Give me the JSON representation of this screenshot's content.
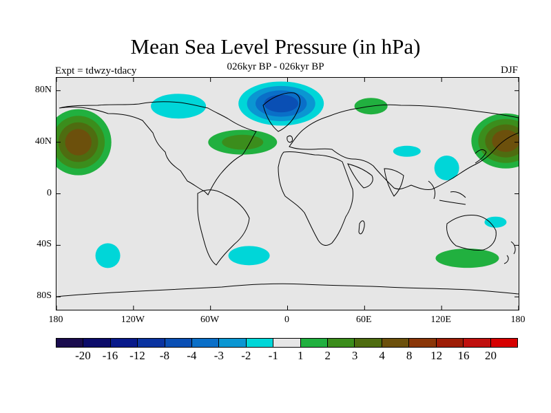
{
  "title": "Mean Sea Level Pressure (in hPa)",
  "subtitle": "026kyr BP - 026kyr BP",
  "experiment": "Expt = tdwzy-tdacy",
  "season": "DJF",
  "map": {
    "projection": "equirectangular",
    "background_color": "#e6e6e6",
    "lon_range": [
      -180,
      180
    ],
    "lat_range": [
      -90,
      90
    ],
    "lat_ticks": [
      "80N",
      "40N",
      "0",
      "40S",
      "80S"
    ],
    "lon_ticks": [
      "180",
      "120W",
      "60W",
      "0",
      "60E",
      "120E",
      "180"
    ]
  },
  "colorbar": {
    "colors": [
      "#1a0c4e",
      "#0c0c6a",
      "#08198a",
      "#0a33a0",
      "#0a4fb4",
      "#0a6fc8",
      "#0a96d2",
      "#00d6d8",
      "#e6e6e6",
      "#21b03f",
      "#3b8d1c",
      "#4e6c10",
      "#6c500c",
      "#8a3608",
      "#9e1d06",
      "#c0100e",
      "#d60000"
    ],
    "labels": [
      "-20",
      "-16",
      "-12",
      "-8",
      "-4",
      "-3",
      "-2",
      "-1",
      "1",
      "2",
      "3",
      "4",
      "8",
      "12",
      "16",
      "20"
    ]
  },
  "anomalies": [
    {
      "name": "north-pacific-positive-west",
      "sign": "positive",
      "lon": -163,
      "lat": 40,
      "levels": [
        "#21b03f",
        "#3b8d1c",
        "#4e6c10",
        "#6c500c"
      ]
    },
    {
      "name": "north-pacific-positive-east",
      "sign": "positive",
      "lon": 170,
      "lat": 41,
      "levels": [
        "#21b03f",
        "#3b8d1c",
        "#4e6c10",
        "#6c500c"
      ]
    },
    {
      "name": "north-atlantic-negative",
      "sign": "negative",
      "lon": -5,
      "lat": 70,
      "levels": [
        "#00d6d8",
        "#0a96d2",
        "#0a6fc8",
        "#0a4fb4"
      ]
    },
    {
      "name": "canadian-arctic-negative",
      "sign": "negative",
      "lon": -85,
      "lat": 68,
      "levels": [
        "#00d6d8"
      ]
    },
    {
      "name": "central-atlantic-positive",
      "sign": "positive",
      "lon": -35,
      "lat": 40,
      "levels": [
        "#21b03f",
        "#3b8d1c"
      ]
    },
    {
      "name": "siberia-positive",
      "sign": "positive",
      "lon": 65,
      "lat": 68,
      "levels": [
        "#21b03f"
      ]
    },
    {
      "name": "east-asia-negative",
      "sign": "negative",
      "lon": 124,
      "lat": 20,
      "levels": [
        "#00d6d8"
      ]
    },
    {
      "name": "southern-ocean-positive",
      "sign": "positive",
      "lon": 140,
      "lat": -50,
      "levels": [
        "#21b03f"
      ]
    },
    {
      "name": "south-pacific-negative",
      "sign": "negative",
      "lon": -140,
      "lat": -48,
      "levels": [
        "#00d6d8"
      ]
    },
    {
      "name": "south-atlantic-negative",
      "sign": "negative",
      "lon": -30,
      "lat": -48,
      "levels": [
        "#00d6d8"
      ]
    },
    {
      "name": "arabian-sea-negative",
      "sign": "negative",
      "lon": 93,
      "lat": 33,
      "levels": [
        "#00d6d8"
      ]
    },
    {
      "name": "tasman-negative",
      "sign": "negative",
      "lon": 162,
      "lat": -22,
      "levels": [
        "#00d6d8"
      ]
    }
  ]
}
